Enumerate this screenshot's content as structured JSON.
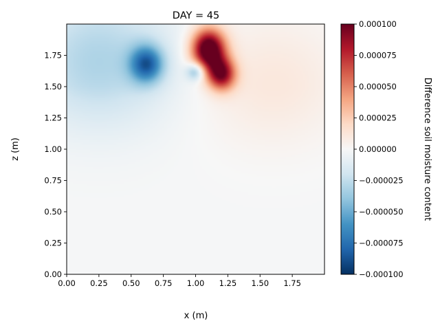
{
  "chart_data": {
    "type": "heatmap",
    "title": "DAY = 45",
    "xlabel": "x (m)",
    "ylabel": "z (m)",
    "xlim": [
      0,
      2.0
    ],
    "ylim": [
      0,
      2.0
    ],
    "xticks": [
      0.0,
      0.25,
      0.5,
      0.75,
      1.0,
      1.25,
      1.5,
      1.75
    ],
    "yticks": [
      0.0,
      0.25,
      0.5,
      0.75,
      1.0,
      1.25,
      1.5,
      1.75
    ],
    "xtick_labels": [
      "0.00",
      "0.25",
      "0.50",
      "0.75",
      "1.00",
      "1.25",
      "1.50",
      "1.75"
    ],
    "ytick_labels": [
      "0.00",
      "0.25",
      "0.50",
      "0.75",
      "1.00",
      "1.25",
      "1.50",
      "1.75"
    ],
    "colorbar": {
      "label": "Difference soil moisture content",
      "colormap": "RdBu_r",
      "vmin": -0.0001,
      "vmax": 0.0001,
      "ticks": [
        0.0001,
        7.5e-05,
        5e-05,
        2.5e-05,
        0.0,
        -2.5e-05,
        -5e-05,
        -7.5e-05,
        -0.0001
      ],
      "tick_labels": [
        "0.000100",
        "0.000075",
        "0.000050",
        "0.000025",
        "0.000000",
        "−0.000025",
        "−0.000050",
        "−0.000075",
        "−0.000100"
      ]
    },
    "field_features": [
      {
        "kind": "positive-maximum",
        "x": 1.1,
        "z": 1.8,
        "value": 0.00012
      },
      {
        "kind": "positive-lobe",
        "x": 1.2,
        "z": 1.6,
        "value": 9e-05
      },
      {
        "kind": "negative-minimum",
        "x": 0.62,
        "z": 1.68,
        "value": -7e-05
      },
      {
        "kind": "negative-small",
        "x": 1.0,
        "z": 1.62,
        "value": -4.5e-05
      },
      {
        "kind": "broad-negative",
        "x": 0.25,
        "z": 1.7,
        "value": -3e-05
      },
      {
        "kind": "broad-positive",
        "x": 1.6,
        "z": 1.5,
        "value": 1.2e-05
      }
    ]
  }
}
